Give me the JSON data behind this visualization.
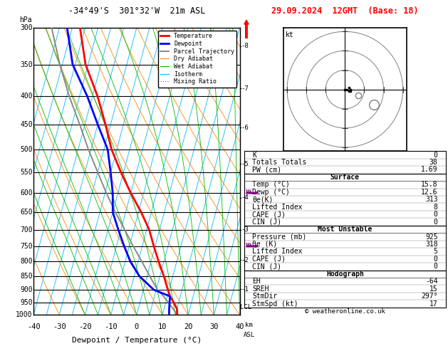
{
  "title_left": "-34°49'S  301°32'W  21m ASL",
  "title_right": "29.09.2024  12GMT  (Base: 18)",
  "xlabel": "Dewpoint / Temperature (°C)",
  "pressure_levels": [
    300,
    350,
    400,
    450,
    500,
    550,
    600,
    650,
    700,
    750,
    800,
    850,
    900,
    950,
    1000
  ],
  "temp_profile_p": [
    1000,
    975,
    950,
    925,
    900,
    850,
    800,
    750,
    700,
    650,
    600,
    550,
    500,
    450,
    400,
    350,
    300
  ],
  "temp_profile_t": [
    15.8,
    15.0,
    13.2,
    11.0,
    9.5,
    6.5,
    3.0,
    -0.5,
    -4.0,
    -9.0,
    -15.0,
    -21.0,
    -27.0,
    -32.0,
    -38.0,
    -46.0,
    -52.0
  ],
  "dewp_profile_t": [
    12.6,
    12.0,
    11.5,
    11.0,
    4.0,
    -3.0,
    -8.0,
    -12.0,
    -16.0,
    -20.0,
    -22.0,
    -25.0,
    -28.5,
    -35.0,
    -42.0,
    -51.0,
    -57.0
  ],
  "parcel_profile_t": [
    15.8,
    13.5,
    11.0,
    8.5,
    5.5,
    1.0,
    -3.5,
    -8.5,
    -13.5,
    -19.0,
    -24.5,
    -30.0,
    -36.0,
    -42.0,
    -49.0,
    -56.0,
    -63.0
  ],
  "colors": {
    "temperature": "#ff0000",
    "dewpoint": "#0000ff",
    "parcel": "#888888",
    "dry_adiabat": "#ff8800",
    "wet_adiabat": "#00bb00",
    "isotherm": "#00bbff",
    "mixing_ratio": "#ff00ff",
    "isobar": "#000000",
    "background": "#ffffff"
  },
  "mixing_ratio_levels": [
    1,
    2,
    3,
    4,
    8,
    10,
    16,
    20,
    25
  ],
  "km_labels": [
    1,
    2,
    3,
    4,
    5,
    6,
    7,
    8
  ],
  "km_pressures": [
    898,
    795,
    700,
    612,
    531,
    456,
    387,
    324
  ],
  "stats_indices": {
    "K": "0",
    "Totals Totals": "38",
    "PW (cm)": "1.69"
  },
  "stats_surface_title": "Surface",
  "stats_surface": [
    [
      "Temp (°C)",
      "15.8"
    ],
    [
      "Dewp (°C)",
      "12.6"
    ],
    [
      "θe(K)",
      "313"
    ],
    [
      "Lifted Index",
      "8"
    ],
    [
      "CAPE (J)",
      "0"
    ],
    [
      "CIN (J)",
      "0"
    ]
  ],
  "stats_unstable_title": "Most Unstable",
  "stats_unstable": [
    [
      "Pressure (mb)",
      "925"
    ],
    [
      "θe (K)",
      "318"
    ],
    [
      "Lifted Index",
      "5"
    ],
    [
      "CAPE (J)",
      "0"
    ],
    [
      "CIN (J)",
      "0"
    ]
  ],
  "stats_hodograph_title": "Hodograph",
  "stats_hodograph": [
    [
      "EH",
      "-64"
    ],
    [
      "SREH",
      "15"
    ],
    [
      "StmDir",
      "297°"
    ],
    [
      "StmSpd (kt)",
      "17"
    ]
  ],
  "copyright": "© weatheronline.co.uk",
  "lcl_pressure": 967,
  "P_min": 300,
  "P_max": 1000,
  "T_min": -40,
  "T_max": 40,
  "skew_factor": 30,
  "wind_levels_p": [
    400,
    500
  ],
  "wind_levels_km": [
    7,
    6
  ]
}
